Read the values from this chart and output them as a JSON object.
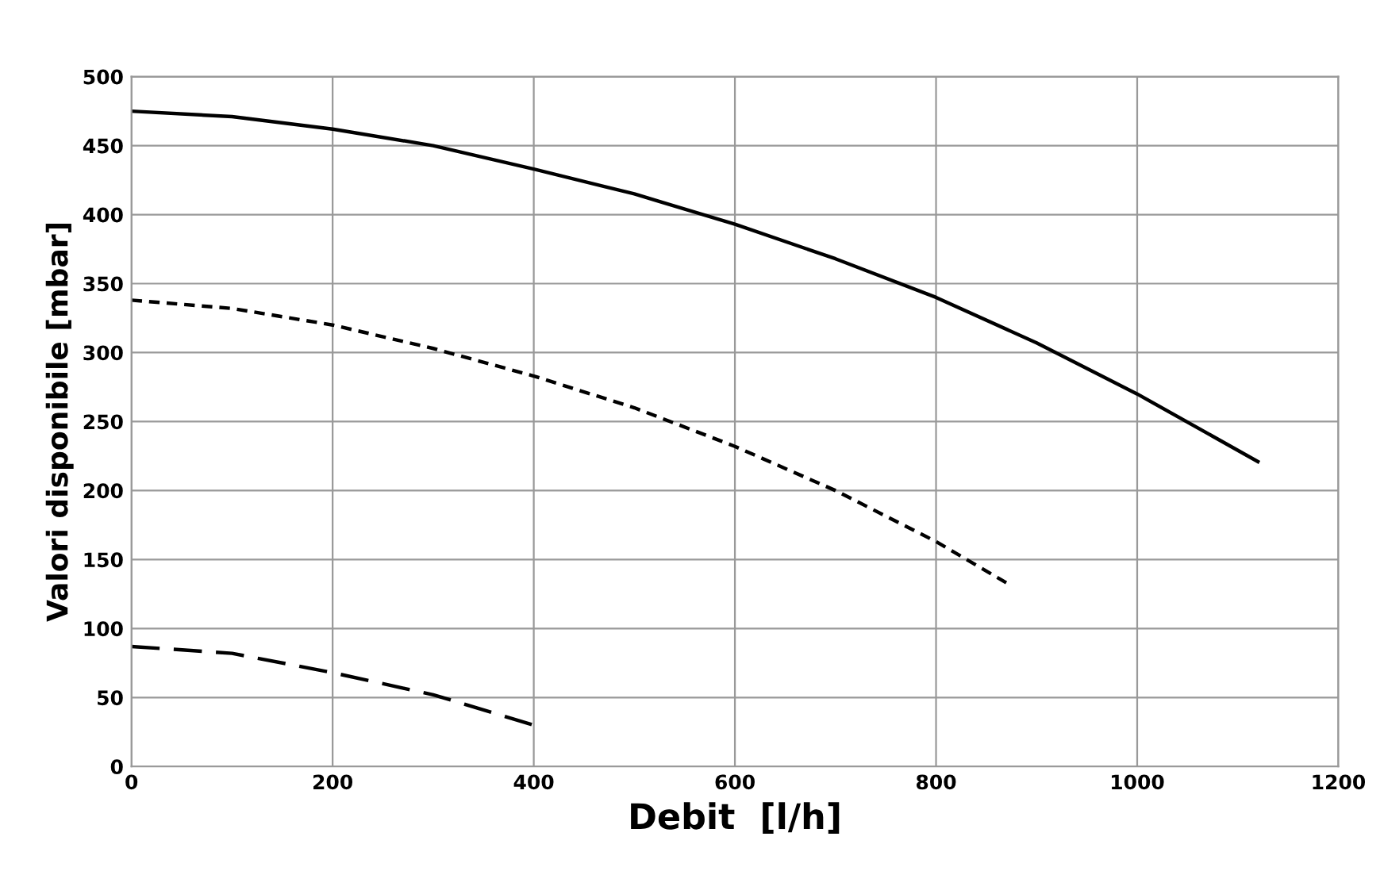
{
  "chart_data": {
    "type": "line",
    "xlabel": "Debit  [l/h]",
    "ylabel": "Valori disponibile [mbar]",
    "xlim": [
      0,
      1200
    ],
    "xticks": [
      0,
      200,
      400,
      600,
      800,
      1000,
      1200
    ],
    "ylim": [
      0,
      500
    ],
    "yticks": [
      0,
      50,
      100,
      150,
      200,
      250,
      300,
      350,
      400,
      450,
      500
    ],
    "grid": true,
    "legend": false,
    "marker": "none",
    "series": [
      {
        "color": "#000000",
        "line_style": "solid",
        "x": [
          0,
          100,
          200,
          300,
          400,
          500,
          600,
          700,
          800,
          900,
          1000,
          1120
        ],
        "values": [
          475,
          471,
          462,
          450,
          433,
          415,
          393,
          368,
          340,
          307,
          270,
          221
        ]
      },
      {
        "color": "#000000",
        "line_style": "dotted",
        "x": [
          0,
          100,
          200,
          300,
          400,
          500,
          600,
          700,
          800,
          875
        ],
        "values": [
          338,
          332,
          320,
          303,
          283,
          260,
          232,
          200,
          163,
          131
        ]
      },
      {
        "color": "#000000",
        "line_style": "dashed",
        "x": [
          0,
          100,
          200,
          300,
          400
        ],
        "values": [
          87,
          82,
          68,
          52,
          30
        ]
      }
    ]
  }
}
